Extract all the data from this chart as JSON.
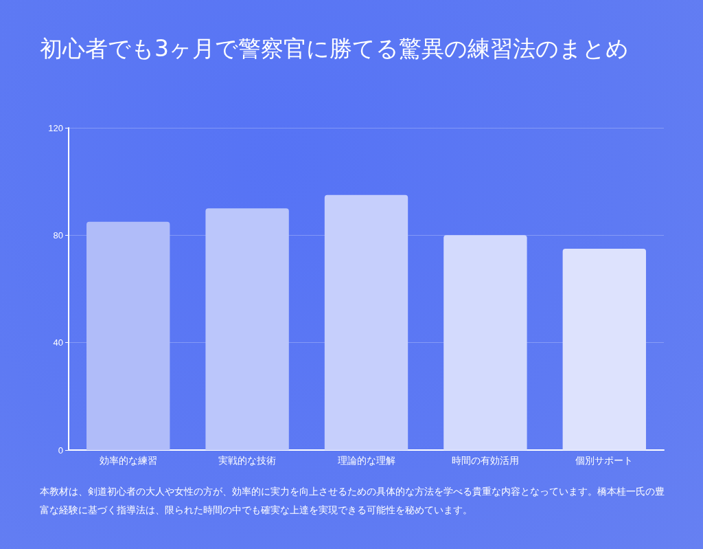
{
  "chart_data": {
    "type": "bar",
    "title": "初心者でも3ヶ月で警察官に勝てる驚異の練習法のまとめ",
    "categories": [
      "効率的な練習",
      "実戦的な技術",
      "理論的な理解",
      "時間の有効活用",
      "個別サポート"
    ],
    "values": [
      85,
      90,
      95,
      80,
      75
    ],
    "colors": [
      "#b0bcf9",
      "#bbc6fb",
      "#c6cffc",
      "#d3dafd",
      "#dde2fd"
    ],
    "ylim": [
      0,
      120
    ],
    "yticks": [
      0,
      40,
      80,
      120
    ],
    "grid": "y",
    "annotations": [
      "本教材は、剣道初心者の大人や女性の方が、効率的に実力を向上させるための具体的な方法を学べる貴重な内容となっています。橋本桂一氏の豊富な経験に基づく指導法は、限られた時間の中でも確実な上達を実現できる可能性を秘めています。"
    ]
  }
}
